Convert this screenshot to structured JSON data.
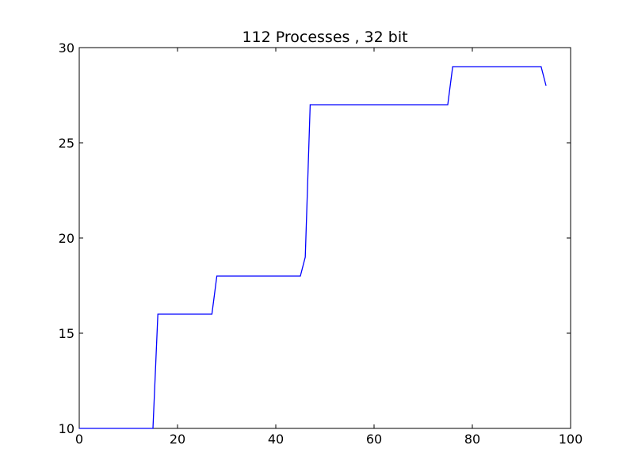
{
  "chart_data": {
    "type": "line",
    "title": "112 Processes , 32 bit",
    "xlabel": "",
    "ylabel": "",
    "xlim": [
      0,
      100
    ],
    "ylim": [
      10,
      30
    ],
    "grid": false,
    "x_ticks": [
      0,
      20,
      40,
      60,
      80,
      100
    ],
    "x_tick_labels": [
      "0",
      "20",
      "40",
      "60",
      "80",
      "100"
    ],
    "y_ticks": [
      10,
      15,
      20,
      25,
      30
    ],
    "y_tick_labels": [
      "10",
      "15",
      "20",
      "25",
      "30"
    ],
    "series": [
      {
        "color": "#0000ff",
        "x": [
          0,
          15,
          16,
          27,
          28,
          45,
          46,
          47,
          75,
          76,
          94,
          95
        ],
        "y": [
          10,
          10,
          16,
          16,
          18,
          18,
          19,
          27,
          27,
          29,
          29,
          28
        ]
      }
    ]
  }
}
